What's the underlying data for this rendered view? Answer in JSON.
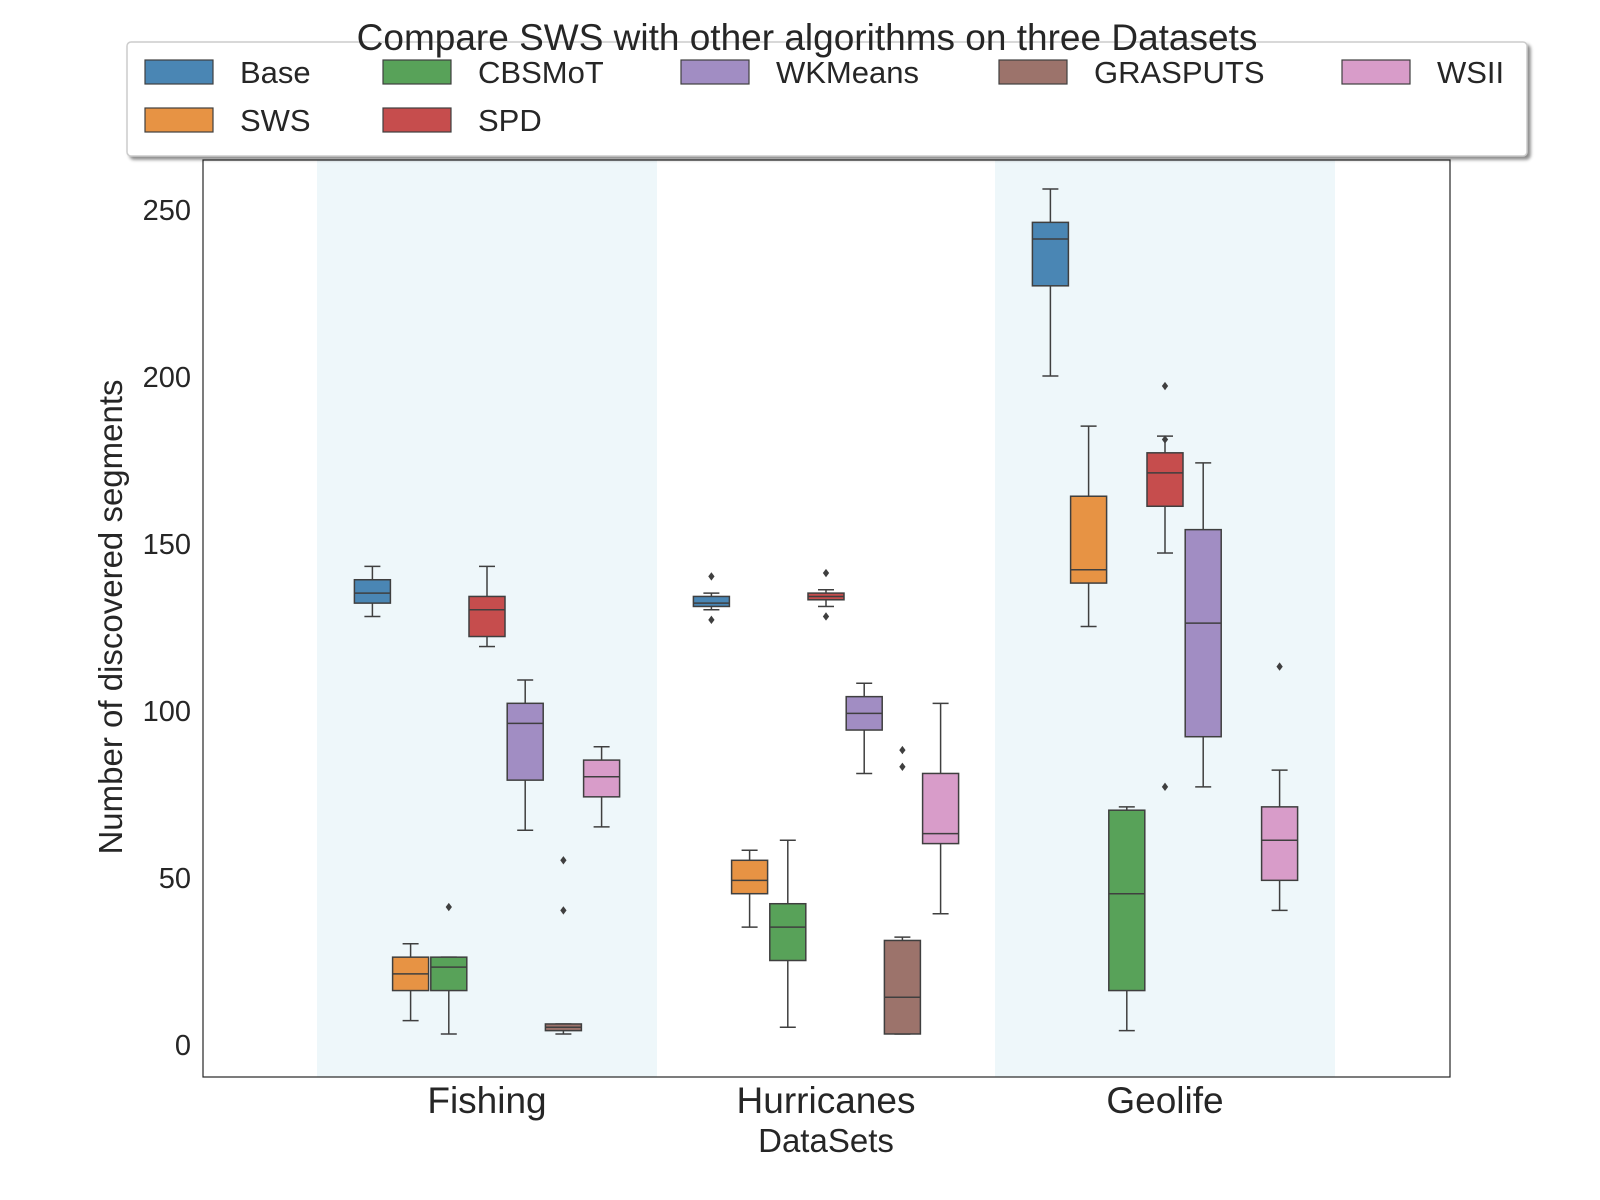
{
  "chart_data": {
    "type": "box",
    "title": "Compare SWS with other algorithms on three Datasets",
    "xlabel": "DataSets",
    "ylabel": "Number of discovered segments",
    "ylim": [
      -10,
      265
    ],
    "yticks": [
      0,
      50,
      100,
      150,
      200,
      250
    ],
    "categories": [
      "Fishing",
      "Hurricanes",
      "Geolife"
    ],
    "shaded_categories": [
      "Fishing",
      "Geolife"
    ],
    "shade_color": "#eef7fa",
    "legend_position": "top-center",
    "series": [
      {
        "name": "Base",
        "color": "#3a7cad",
        "boxes": [
          {
            "whislo": 128,
            "q1": 132,
            "med": 135,
            "q3": 139,
            "whishi": 143,
            "fliers": []
          },
          {
            "whislo": 130,
            "q1": 131,
            "med": 132,
            "q3": 134,
            "whishi": 135,
            "fliers": [
              127,
              140
            ]
          },
          {
            "whislo": 200,
            "q1": 227,
            "med": 241,
            "q3": 246,
            "whishi": 256,
            "fliers": []
          }
        ]
      },
      {
        "name": "SWS",
        "color": "#e58a34",
        "boxes": [
          {
            "whislo": 7,
            "q1": 16,
            "med": 21,
            "q3": 26,
            "whishi": 30,
            "fliers": []
          },
          {
            "whislo": 35,
            "q1": 45,
            "med": 49,
            "q3": 55,
            "whishi": 58,
            "fliers": []
          },
          {
            "whislo": 125,
            "q1": 138,
            "med": 142,
            "q3": 164,
            "whishi": 185,
            "fliers": []
          }
        ]
      },
      {
        "name": "CBSMoT",
        "color": "#4a9a4b",
        "boxes": [
          {
            "whislo": 3,
            "q1": 16,
            "med": 23,
            "q3": 26,
            "whishi": 26,
            "fliers": [
              41
            ]
          },
          {
            "whislo": 5,
            "q1": 25,
            "med": 35,
            "q3": 42,
            "whishi": 61,
            "fliers": []
          },
          {
            "whislo": 4,
            "q1": 16,
            "med": 45,
            "q3": 70,
            "whishi": 71,
            "fliers": []
          }
        ]
      },
      {
        "name": "SPD",
        "color": "#c13d3d",
        "boxes": [
          {
            "whislo": 119,
            "q1": 122,
            "med": 130,
            "q3": 134,
            "whishi": 143,
            "fliers": []
          },
          {
            "whislo": 131,
            "q1": 133,
            "med": 134,
            "q3": 135,
            "whishi": 136,
            "fliers": [
              128,
              141
            ]
          },
          {
            "whislo": 147,
            "q1": 161,
            "med": 171,
            "q3": 177,
            "whishi": 182,
            "fliers": [
              197,
              181,
              77
            ]
          }
        ]
      },
      {
        "name": "WKMeans",
        "color": "#9983be",
        "boxes": [
          {
            "whislo": 64,
            "q1": 79,
            "med": 96,
            "q3": 102,
            "whishi": 109,
            "fliers": []
          },
          {
            "whislo": 81,
            "q1": 94,
            "med": 99,
            "q3": 104,
            "whishi": 108,
            "fliers": []
          },
          {
            "whislo": 77,
            "q1": 92,
            "med": 126,
            "q3": 154,
            "whishi": 174,
            "fliers": []
          }
        ]
      },
      {
        "name": "GRASPUTS",
        "color": "#93675e",
        "boxes": [
          {
            "whislo": 3,
            "q1": 4,
            "med": 5,
            "q3": 6,
            "whishi": 6,
            "fliers": [
              40,
              55
            ]
          },
          {
            "whislo": 3,
            "q1": 3,
            "med": 14,
            "q3": 31,
            "whishi": 32,
            "fliers": [
              83,
              88
            ]
          },
          null
        ]
      },
      {
        "name": "WSII",
        "color": "#d593c4",
        "boxes": [
          {
            "whislo": 65,
            "q1": 74,
            "med": 80,
            "q3": 85,
            "whishi": 89,
            "fliers": []
          },
          {
            "whislo": 39,
            "q1": 60,
            "med": 63,
            "q3": 81,
            "whishi": 102,
            "fliers": []
          },
          {
            "whislo": 40,
            "q1": 49,
            "med": 61,
            "q3": 71,
            "whishi": 82,
            "fliers": [
              113
            ]
          }
        ]
      }
    ]
  }
}
